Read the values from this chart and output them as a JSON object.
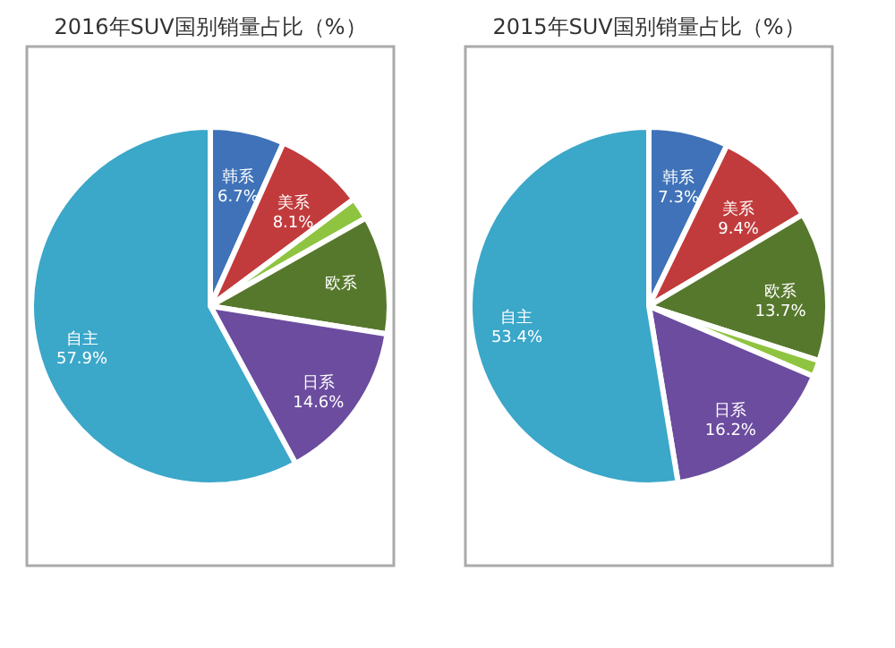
{
  "chart_data": [
    {
      "type": "pie",
      "title": "2016年SUV国别销量占比（%）",
      "categories": [
        "韩系",
        "美系",
        null,
        "欧系",
        "日系",
        "自主"
      ],
      "values": [
        6.7,
        8.1,
        2.0,
        10.7,
        14.6,
        57.9
      ],
      "colors": [
        "#3f72b8",
        "#c23b3c",
        "#8fc440",
        "#56782c",
        "#6b4c9e",
        "#3ba7c9"
      ],
      "value_labels": [
        "6.7%",
        "8.1%",
        null,
        null,
        "14.6%",
        "57.9%"
      ]
    },
    {
      "type": "pie",
      "title": "2015年SUV国别销量占比（%）",
      "categories": [
        "韩系",
        "美系",
        "欧系",
        null,
        "日系",
        "自主"
      ],
      "values": [
        7.3,
        9.4,
        13.7,
        1.5,
        16.2,
        53.4
      ],
      "colors": [
        "#3f72b8",
        "#c23b3c",
        "#56782c",
        "#8fc440",
        "#6b4c9e",
        "#3ba7c9"
      ],
      "value_labels": [
        "7.3%",
        "9.4%",
        "13.7%",
        null,
        "16.2%",
        "53.4%"
      ]
    }
  ]
}
